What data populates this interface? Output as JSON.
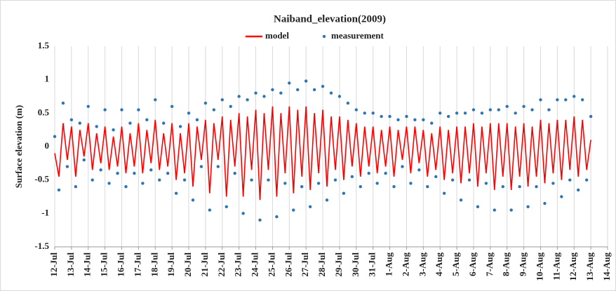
{
  "chart_data": {
    "type": "line-scatter",
    "title": "Naiband_elevation(2009)",
    "y_label": "Surface elevation (m)",
    "xlim": [
      0,
      33
    ],
    "ylim": [
      -1.5,
      1.5
    ],
    "yticks": [
      -1.5,
      -1,
      -0.5,
      0,
      0.5,
      1,
      1.5
    ],
    "xticks": [
      {
        "value": 0,
        "label": "12-Jul"
      },
      {
        "value": 1,
        "label": "13-Jul"
      },
      {
        "value": 2,
        "label": "14-Jul"
      },
      {
        "value": 3,
        "label": "15-Jul"
      },
      {
        "value": 4,
        "label": "16-Jul"
      },
      {
        "value": 5,
        "label": "17-Jul"
      },
      {
        "value": 6,
        "label": "18-Jul"
      },
      {
        "value": 7,
        "label": "19-Jul"
      },
      {
        "value": 8,
        "label": "20-Jul"
      },
      {
        "value": 9,
        "label": "21-Jul"
      },
      {
        "value": 10,
        "label": "22-Jul"
      },
      {
        "value": 11,
        "label": "23-Jul"
      },
      {
        "value": 12,
        "label": "24-Jul"
      },
      {
        "value": 13,
        "label": "25-Jul"
      },
      {
        "value": 14,
        "label": "26-Jul"
      },
      {
        "value": 15,
        "label": "27-Jul"
      },
      {
        "value": 16,
        "label": "28-Jul"
      },
      {
        "value": 17,
        "label": "29-Jul"
      },
      {
        "value": 18,
        "label": "30-Jul"
      },
      {
        "value": 19,
        "label": "31-Jul"
      },
      {
        "value": 20,
        "label": "1-Aug"
      },
      {
        "value": 21,
        "label": "2-Aug"
      },
      {
        "value": 22,
        "label": "3-Aug"
      },
      {
        "value": 23,
        "label": "4-Aug"
      },
      {
        "value": 24,
        "label": "5-Aug"
      },
      {
        "value": 25,
        "label": "6-Aug"
      },
      {
        "value": 26,
        "label": "7-Aug"
      },
      {
        "value": 27,
        "label": "8-Aug"
      },
      {
        "value": 28,
        "label": "9-Aug"
      },
      {
        "value": 29,
        "label": "10-Aug"
      },
      {
        "value": 30,
        "label": "11-Aug"
      },
      {
        "value": 31,
        "label": "12-Aug"
      },
      {
        "value": 32,
        "label": "13-Aug"
      },
      {
        "value": 33,
        "label": "14-Aug"
      }
    ],
    "grid": true,
    "legend": "top",
    "x": [
      0,
      0.25,
      0.5,
      0.75,
      1,
      1.25,
      1.5,
      1.75,
      2,
      2.25,
      2.5,
      2.75,
      3,
      3.25,
      3.5,
      3.75,
      4,
      4.25,
      4.5,
      4.75,
      5,
      5.25,
      5.5,
      5.75,
      6,
      6.25,
      6.5,
      6.75,
      7,
      7.25,
      7.5,
      7.75,
      8,
      8.25,
      8.5,
      8.75,
      9,
      9.25,
      9.5,
      9.75,
      10,
      10.25,
      10.5,
      10.75,
      11,
      11.25,
      11.5,
      11.75,
      12,
      12.25,
      12.5,
      12.75,
      13,
      13.25,
      13.5,
      13.75,
      14,
      14.25,
      14.5,
      14.75,
      15,
      15.25,
      15.5,
      15.75,
      16,
      16.25,
      16.5,
      16.75,
      17,
      17.25,
      17.5,
      17.75,
      18,
      18.25,
      18.5,
      18.75,
      19,
      19.25,
      19.5,
      19.75,
      20,
      20.25,
      20.5,
      20.75,
      21,
      21.25,
      21.5,
      21.75,
      22,
      22.25,
      22.5,
      22.75,
      23,
      23.25,
      23.5,
      23.75,
      24,
      24.25,
      24.5,
      24.75,
      25,
      25.25,
      25.5,
      25.75,
      26,
      26.25,
      26.5,
      26.75,
      27,
      27.25,
      27.5,
      27.75,
      28,
      28.25,
      28.5,
      28.75,
      29,
      29.25,
      29.5,
      29.75,
      30,
      30.25,
      30.5,
      30.75,
      31,
      31.25,
      31.5,
      31.75,
      32
    ],
    "series": [
      {
        "name": "model",
        "color": "#ff0000",
        "values": [
          -0.1,
          -0.45,
          0.35,
          -0.2,
          0.3,
          -0.45,
          0.25,
          -0.15,
          0.35,
          -0.35,
          0.2,
          -0.25,
          0.3,
          -0.35,
          0.15,
          -0.3,
          0.3,
          -0.4,
          0.2,
          -0.3,
          0.35,
          -0.4,
          0.25,
          -0.25,
          0.4,
          -0.35,
          0.2,
          -0.3,
          0.35,
          -0.5,
          0.2,
          -0.4,
          0.35,
          -0.6,
          0.3,
          -0.2,
          0.4,
          -0.7,
          0.35,
          -0.2,
          0.45,
          -0.75,
          0.4,
          -0.3,
          0.5,
          -0.75,
          0.45,
          -0.35,
          0.55,
          -0.8,
          0.5,
          -0.35,
          0.6,
          -0.75,
          0.5,
          -0.4,
          0.6,
          -0.7,
          0.55,
          -0.45,
          0.6,
          -0.65,
          0.5,
          -0.4,
          0.55,
          -0.6,
          0.45,
          -0.35,
          0.45,
          -0.5,
          0.4,
          -0.3,
          0.35,
          -0.45,
          0.3,
          -0.3,
          0.3,
          -0.4,
          0.25,
          -0.3,
          0.3,
          -0.45,
          0.25,
          -0.2,
          0.3,
          -0.4,
          0.3,
          -0.25,
          0.25,
          -0.45,
          0.2,
          -0.35,
          0.3,
          -0.5,
          0.25,
          -0.4,
          0.3,
          -0.55,
          0.3,
          -0.4,
          0.35,
          -0.6,
          0.3,
          -0.4,
          0.35,
          -0.65,
          0.35,
          -0.45,
          0.35,
          -0.65,
          0.3,
          -0.45,
          0.35,
          -0.6,
          0.3,
          -0.45,
          0.4,
          -0.55,
          0.35,
          -0.4,
          0.4,
          -0.5,
          0.4,
          -0.35,
          0.45,
          -0.45,
          0.4,
          -0.35,
          0.1
        ]
      },
      {
        "name": "measurement",
        "color": "#2e75b6",
        "values": [
          0.15,
          -0.65,
          0.65,
          -0.3,
          0.4,
          -0.6,
          0.35,
          -0.2,
          0.6,
          -0.5,
          0.3,
          -0.35,
          0.55,
          -0.55,
          0.25,
          -0.4,
          0.55,
          -0.6,
          0.35,
          -0.4,
          0.55,
          -0.55,
          0.4,
          -0.35,
          0.7,
          -0.5,
          0.35,
          -0.4,
          0.6,
          -0.7,
          0.3,
          -0.5,
          0.5,
          -0.8,
          0.4,
          -0.3,
          0.65,
          -0.95,
          0.55,
          -0.3,
          0.7,
          -0.9,
          0.6,
          -0.4,
          0.75,
          -1.0,
          0.7,
          -0.5,
          0.8,
          -1.1,
          0.75,
          -0.5,
          0.85,
          -1.05,
          0.8,
          -0.55,
          0.95,
          -0.95,
          0.85,
          -0.6,
          0.98,
          -0.9,
          0.85,
          -0.55,
          0.9,
          -0.8,
          0.8,
          -0.5,
          0.75,
          -0.7,
          0.65,
          -0.45,
          0.55,
          -0.6,
          0.5,
          -0.4,
          0.5,
          -0.55,
          0.45,
          -0.4,
          0.45,
          -0.6,
          0.4,
          -0.3,
          0.45,
          -0.55,
          0.4,
          -0.35,
          0.4,
          -0.6,
          0.35,
          -0.45,
          0.5,
          -0.7,
          0.45,
          -0.5,
          0.5,
          -0.8,
          0.5,
          -0.5,
          0.55,
          -0.9,
          0.5,
          -0.55,
          0.55,
          -0.95,
          0.55,
          -0.6,
          0.6,
          -0.95,
          0.5,
          -0.6,
          0.6,
          -0.9,
          0.55,
          -0.6,
          0.7,
          -0.85,
          0.55,
          -0.55,
          0.7,
          -0.75,
          0.7,
          -0.5,
          0.75,
          -0.65,
          0.7,
          -0.5,
          0.45
        ]
      }
    ]
  }
}
